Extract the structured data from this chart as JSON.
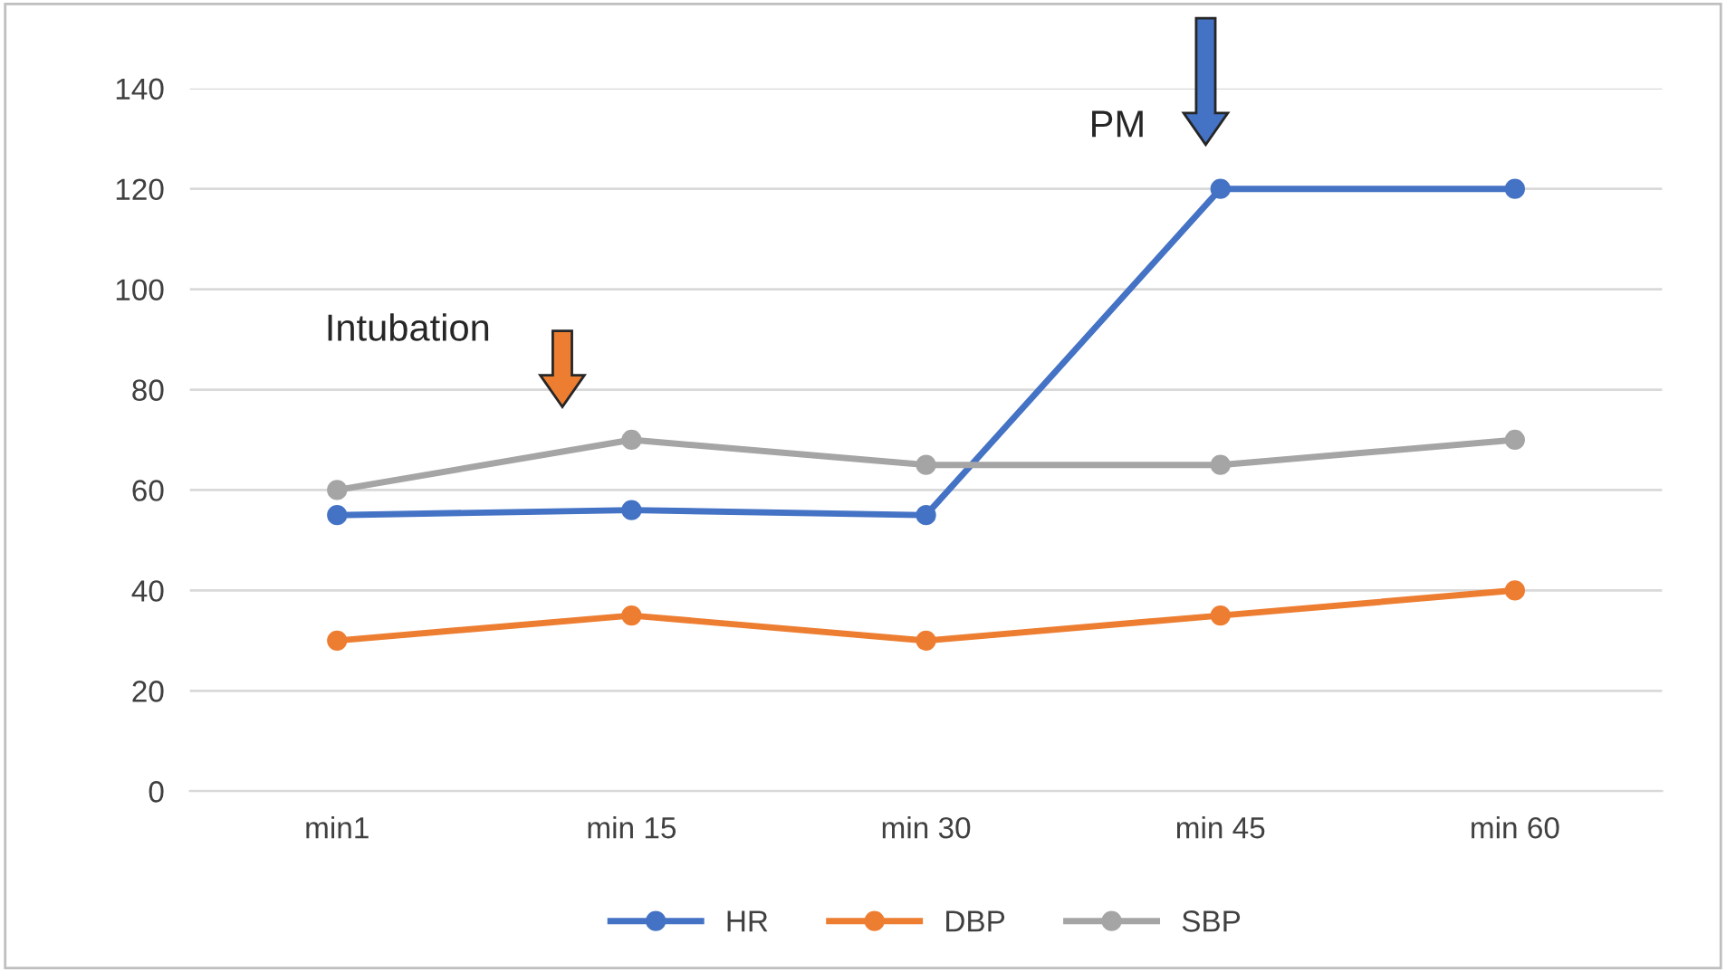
{
  "chart_data": {
    "type": "line",
    "categories": [
      "min1",
      "min 15",
      "min 30",
      "min 45",
      "min 60"
    ],
    "series": [
      {
        "name": "HR",
        "color": "#4472c4",
        "values": [
          55,
          56,
          55,
          120,
          120
        ]
      },
      {
        "name": "DBP",
        "color": "#ed7d31",
        "values": [
          30,
          35,
          30,
          35,
          40
        ]
      },
      {
        "name": "SBP",
        "color": "#a5a5a5",
        "values": [
          60,
          70,
          65,
          65,
          70
        ]
      }
    ],
    "ylim": [
      0,
      140
    ],
    "yticks": [
      0,
      20,
      40,
      60,
      80,
      100,
      120,
      140
    ],
    "grid": "y",
    "legend": "bottom",
    "marker": "circle",
    "line_style": "solid",
    "annotations": [
      "Intubation",
      "PM"
    ]
  }
}
